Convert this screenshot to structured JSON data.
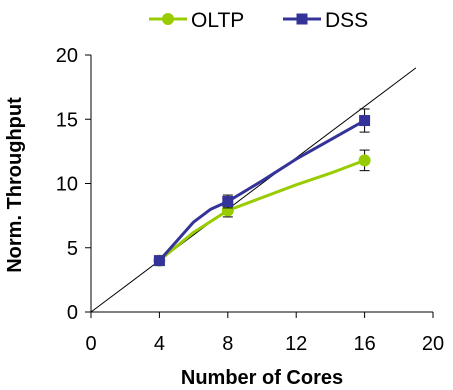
{
  "chart_data": {
    "type": "line",
    "title": "",
    "xlabel": "Number of Cores",
    "ylabel": "Norm. Throughput",
    "xlim": [
      0,
      20
    ],
    "ylim": [
      0,
      20
    ],
    "x_ticks": [
      0,
      4,
      8,
      12,
      16,
      20
    ],
    "y_ticks": [
      0,
      5,
      10,
      15,
      20
    ],
    "x_tick_labels": [
      "0",
      "4",
      "8",
      "12",
      "16",
      "20"
    ],
    "y_tick_labels": [
      "0",
      "5",
      "10",
      "15",
      "20"
    ],
    "grid": false,
    "legend_position": "top",
    "reference_line": {
      "x": [
        0,
        19
      ],
      "y": [
        0,
        19
      ],
      "color": "#000000"
    },
    "series": [
      {
        "name": "OLTP",
        "color": "#99cc00",
        "marker": "circle",
        "x": [
          4,
          8,
          16
        ],
        "y": [
          4.0,
          7.9,
          11.8
        ],
        "curve_x": [
          4,
          6,
          8,
          10,
          12,
          14,
          16
        ],
        "curve_y": [
          4.0,
          6.2,
          7.9,
          8.9,
          9.9,
          10.8,
          11.8
        ],
        "error_low": [
          0,
          0.5,
          0.8
        ],
        "error_high": [
          0,
          0.5,
          0.8
        ]
      },
      {
        "name": "DSS",
        "color": "#333399",
        "marker": "square",
        "x": [
          4,
          8,
          16
        ],
        "y": [
          4.0,
          8.6,
          14.9
        ],
        "curve_x": [
          4,
          5,
          6,
          7,
          8,
          10,
          12,
          14,
          16
        ],
        "curve_y": [
          4.0,
          5.5,
          7.0,
          8.0,
          8.6,
          10.2,
          11.9,
          13.4,
          14.9
        ],
        "error_low": [
          0,
          0.5,
          0.9
        ],
        "error_high": [
          0,
          0.5,
          0.9
        ]
      }
    ]
  }
}
